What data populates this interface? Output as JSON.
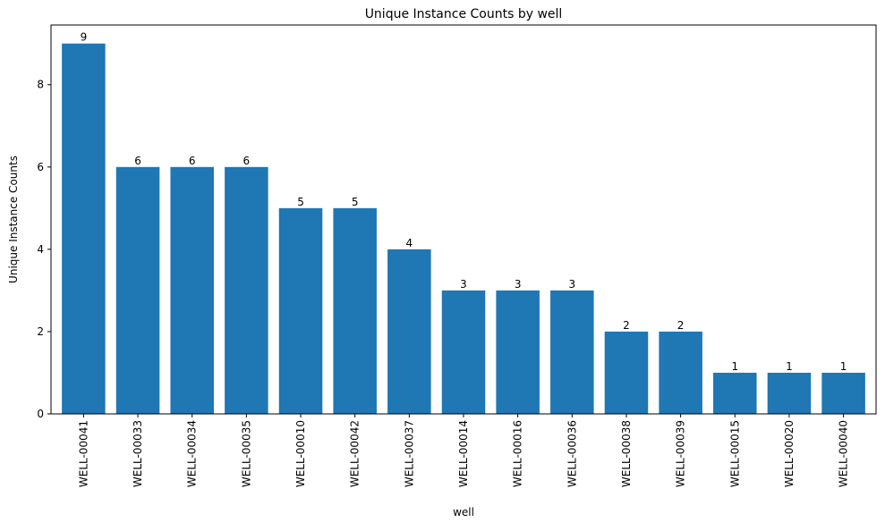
{
  "chart_data": {
    "type": "bar",
    "title": "Unique Instance Counts by well",
    "xlabel": "well",
    "ylabel": "Unique Instance Counts",
    "categories": [
      "WELL-00041",
      "WELL-00033",
      "WELL-00034",
      "WELL-00035",
      "WELL-00010",
      "WELL-00042",
      "WELL-00037",
      "WELL-00014",
      "WELL-00016",
      "WELL-00036",
      "WELL-00038",
      "WELL-00039",
      "WELL-00015",
      "WELL-00020",
      "WELL-00040"
    ],
    "values": [
      9,
      6,
      6,
      6,
      5,
      5,
      4,
      3,
      3,
      3,
      2,
      2,
      1,
      1,
      1
    ],
    "data_labels": [
      "9",
      "6",
      "6",
      "6",
      "5",
      "5",
      "4",
      "3",
      "3",
      "3",
      "2",
      "2",
      "1",
      "1",
      "1"
    ],
    "ylim": [
      0,
      9.45
    ],
    "yticks": [
      0,
      2,
      4,
      6,
      8
    ],
    "ytick_labels": [
      "0",
      "2",
      "4",
      "6",
      "8"
    ],
    "grid": false,
    "legend": "none",
    "bar_color": "#1f77b4"
  }
}
